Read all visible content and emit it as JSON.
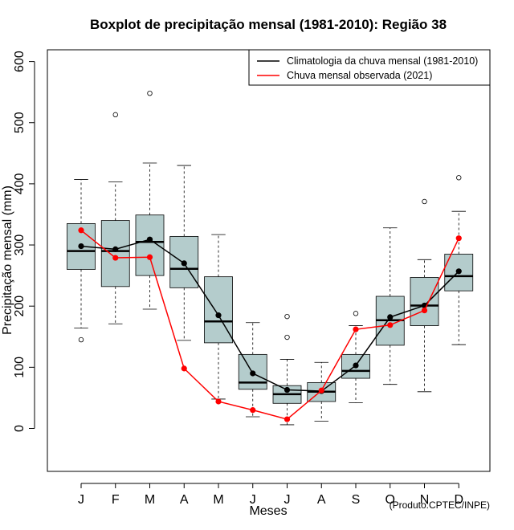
{
  "chart_data": {
    "type": "boxplot",
    "title": "Boxplot de precipitação mensal (1981-2010): Região 38",
    "xlabel": "Meses",
    "ylabel": "Precipitação mensal (mm)",
    "ylim": [
      -70,
      620
    ],
    "yticks": [
      0,
      100,
      200,
      300,
      400,
      500,
      600
    ],
    "categories": [
      "J",
      "F",
      "M",
      "A",
      "M",
      "J",
      "J",
      "A",
      "S",
      "O",
      "N",
      "D"
    ],
    "boxes": [
      {
        "whisker_low": 164,
        "q1": 260,
        "median": 290,
        "q3": 335,
        "whisker_high": 407,
        "outliers": [
          145
        ]
      },
      {
        "whisker_low": 171,
        "q1": 232,
        "median": 290,
        "q3": 340,
        "whisker_high": 403,
        "outliers": [
          513
        ]
      },
      {
        "whisker_low": 195,
        "q1": 250,
        "median": 305,
        "q3": 349,
        "whisker_high": 434,
        "outliers": [
          548
        ]
      },
      {
        "whisker_low": 144,
        "q1": 230,
        "median": 261,
        "q3": 314,
        "whisker_high": 430,
        "outliers": []
      },
      {
        "whisker_low": 48,
        "q1": 140,
        "median": 175,
        "q3": 248,
        "whisker_high": 317,
        "outliers": []
      },
      {
        "whisker_low": 19,
        "q1": 64,
        "median": 75,
        "q3": 121,
        "whisker_high": 173,
        "outliers": []
      },
      {
        "whisker_low": 6,
        "q1": 41,
        "median": 56,
        "q3": 70,
        "whisker_high": 113,
        "outliers": [
          183,
          149
        ]
      },
      {
        "whisker_low": 12,
        "q1": 44,
        "median": 60,
        "q3": 75,
        "whisker_high": 108,
        "outliers": []
      },
      {
        "whisker_low": 42,
        "q1": 82,
        "median": 94,
        "q3": 121,
        "whisker_high": 168,
        "outliers": [
          188
        ]
      },
      {
        "whisker_low": 72,
        "q1": 136,
        "median": 177,
        "q3": 216,
        "whisker_high": 328,
        "outliers": []
      },
      {
        "whisker_low": 60,
        "q1": 168,
        "median": 201,
        "q3": 247,
        "whisker_high": 276,
        "outliers": [
          371
        ]
      },
      {
        "whisker_low": 137,
        "q1": 225,
        "median": 249,
        "q3": 285,
        "whisker_high": 355,
        "outliers": [
          410
        ]
      }
    ],
    "series": [
      {
        "name": "Climatologia da chuva mensal (1981-2010)",
        "color": "#000000",
        "values": [
          298,
          293,
          309,
          270,
          185,
          90,
          63,
          61,
          103,
          182,
          201,
          257
        ]
      },
      {
        "name": "Chuva mensal observada (2021)",
        "color": "#ff0000",
        "values": [
          324,
          279,
          280,
          98,
          44,
          30,
          15,
          62,
          162,
          169,
          193,
          311
        ]
      }
    ],
    "legend_position": "top-right",
    "box_color": "#b4cccc"
  },
  "credit": "(Produto:CPTEC/INPE)"
}
